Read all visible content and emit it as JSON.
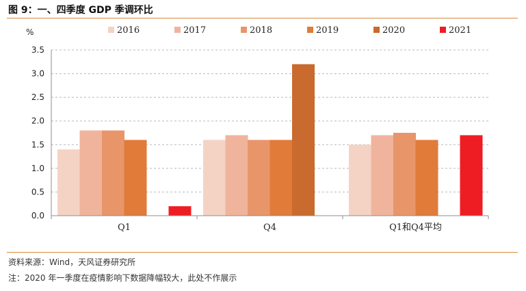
{
  "figure": {
    "title": "图 9：一、四季度 GDP 季调环比",
    "source": "资料来源：Wind，天风证券研究所",
    "note": "注：2020 年一季度在疫情影响下数据降幅较大，此处不作展示"
  },
  "chart_data": {
    "type": "bar",
    "unit": "%",
    "categories": [
      "Q1",
      "Q4",
      "Q1和Q4平均"
    ],
    "ylim": [
      0,
      3.5
    ],
    "yticks": [
      "0.0",
      "0.5",
      "1.0",
      "1.5",
      "2.0",
      "2.5",
      "3.0",
      "3.5"
    ],
    "grid": true,
    "legend_position": "top",
    "series": [
      {
        "name": "2016",
        "color": "#f5d3c4",
        "values": [
          1.4,
          1.6,
          1.5
        ]
      },
      {
        "name": "2017",
        "color": "#f0b49c",
        "values": [
          1.8,
          1.7,
          1.7
        ]
      },
      {
        "name": "2018",
        "color": "#e8956a",
        "values": [
          1.8,
          1.6,
          1.75
        ]
      },
      {
        "name": "2019",
        "color": "#e07b3a",
        "values": [
          1.6,
          1.6,
          1.6
        ]
      },
      {
        "name": "2020",
        "color": "#c96a2e",
        "values": [
          null,
          3.2,
          null
        ]
      },
      {
        "name": "2021",
        "color": "#ee1d23",
        "values": [
          0.2,
          null,
          1.7
        ]
      }
    ]
  }
}
